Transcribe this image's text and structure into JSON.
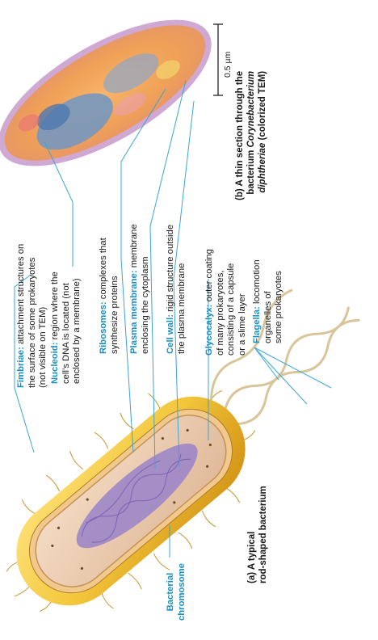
{
  "labels": {
    "fimbriae": {
      "term": "Fimbriae:",
      "desc1": " attachment structures on",
      "line2": "the surface of some prokaryotes",
      "line3": "(not visible on TEM)"
    },
    "nucleoid": {
      "term": "Nucleoid:",
      "desc1": " region where the",
      "line2": "cell’s DNA is located (not",
      "line3": "enclosed by a membrane)"
    },
    "ribosomes": {
      "term": "Ribosomes:",
      "desc1": " complexes that",
      "line2": "synthesize proteins"
    },
    "plasma_membrane": {
      "term": "Plasma membrane:",
      "desc1": " membrane",
      "line2": "enclosing the cytoplasm"
    },
    "cell_wall": {
      "term": "Cell wall:",
      "desc1": " rigid structure outside",
      "line2": "the plasma membrane"
    },
    "glycocalyx": {
      "term": "Glycocalyx:",
      "desc1": " outer coating",
      "line2": "of many prokaryotes,",
      "line3": "consisting of a capsule",
      "line4": "or a slime layer"
    },
    "flagella": {
      "term": "Flagella:",
      "desc1": " locomotion",
      "line2": "organelles of",
      "line3": "some prokaryotes"
    },
    "bacterial_chromosome": {
      "line1": "Bacterial",
      "line2": "chromosome"
    }
  },
  "captions": {
    "a": {
      "line1": "(a) A typical",
      "line2": "rod-shaped bacterium"
    },
    "b": {
      "line1": "(b) A thin section through the",
      "line2_pre": "bacterium ",
      "line2_italic": "Corynebacterium",
      "line3_italic": "diphtheriae",
      "line3_post": " (colorized TEM)"
    }
  },
  "scale_bar": {
    "label": "0.5 µm"
  },
  "colors": {
    "term": "#1a8fc4",
    "leader": "#3aa6d6",
    "capsule": "#e9b422",
    "wall": "#f1c98a",
    "cytoplasm": "#e8c6a8",
    "nucleoid": "#9d86c8"
  }
}
